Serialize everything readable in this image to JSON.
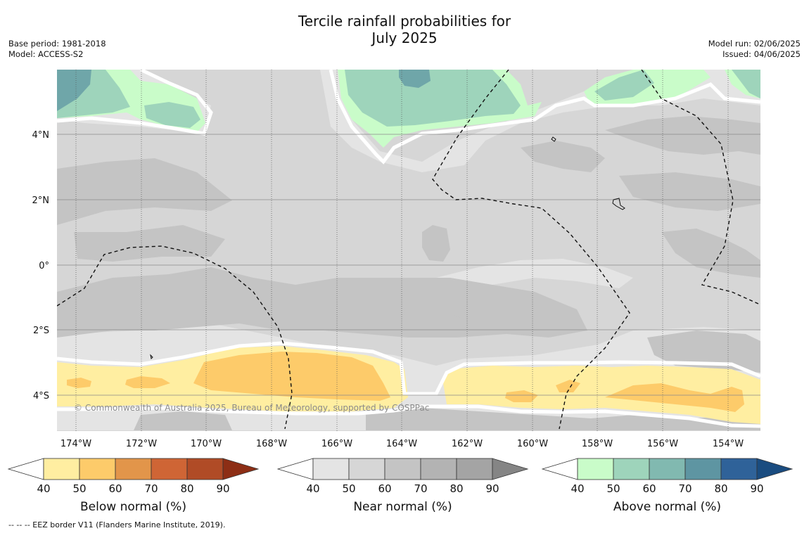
{
  "title": {
    "line1": "Tercile rainfall probabilities for",
    "line2": "July 2025"
  },
  "meta_left": {
    "base_period": "Base period: 1981-2018",
    "model": "Model: ACCESS-S2"
  },
  "meta_right": {
    "model_run": "Model run: 02/06/2025",
    "issued": "Issued: 04/06/2025"
  },
  "map": {
    "lon_range": [
      -174.6,
      -152.9
    ],
    "lat_range": [
      -5.2,
      5.9
    ],
    "x_ticks": [
      "174°W",
      "172°W",
      "170°W",
      "168°W",
      "166°W",
      "164°W",
      "162°W",
      "160°W",
      "158°W",
      "156°W",
      "154°W"
    ],
    "x_tick_values": [
      -174,
      -172,
      -170,
      -168,
      -166,
      -164,
      -162,
      -160,
      -158,
      -156,
      -154
    ],
    "y_ticks": [
      "4°N",
      "2°N",
      "0°",
      "2°S",
      "4°S"
    ],
    "y_tick_values": [
      4,
      2,
      0,
      -2,
      -4
    ],
    "credit": "© Commonwealth of Australia 2025, Bureau of Meteorology, supported by COSPPac",
    "background_color": "#d6d6d6"
  },
  "colorbars": [
    {
      "title": "Below normal (%)",
      "ticks": [
        "40",
        "50",
        "60",
        "70",
        "80",
        "90"
      ],
      "colors": [
        "#ffeea1",
        "#fdcb6a",
        "#e2954a",
        "#cf6535",
        "#b04b26",
        "#8d2e15"
      ]
    },
    {
      "title": "Near normal (%)",
      "ticks": [
        "40",
        "50",
        "60",
        "70",
        "80",
        "90"
      ],
      "colors": [
        "#e4e4e4",
        "#d6d6d6",
        "#c4c4c4",
        "#b3b3b3",
        "#a4a4a4",
        "#858585"
      ]
    },
    {
      "title": "Above normal (%)",
      "ticks": [
        "40",
        "50",
        "60",
        "70",
        "80",
        "90"
      ],
      "colors": [
        "#c9fcc9",
        "#9ed4bb",
        "#81b9b0",
        "#5e95a2",
        "#2f6299",
        "#1a4c80"
      ]
    }
  ],
  "footnote": "--  --  -- EEZ border V11 (Flanders Marine Institute, 2019)."
}
